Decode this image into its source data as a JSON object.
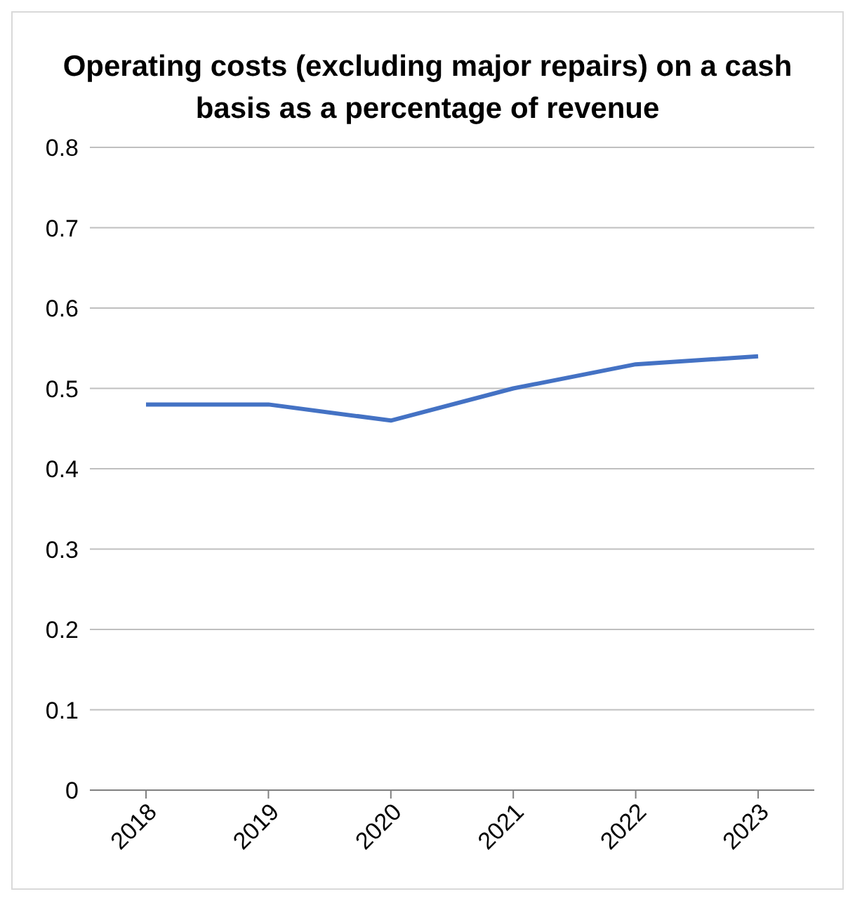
{
  "chart_data": {
    "type": "line",
    "title": "Operating costs (excluding major repairs) on a cash basis as a percentage of revenue",
    "categories": [
      "2018",
      "2019",
      "2020",
      "2021",
      "2022",
      "2023"
    ],
    "series": [
      {
        "color": "#4472c4",
        "values": [
          0.48,
          0.48,
          0.46,
          0.5,
          0.53,
          0.54
        ]
      }
    ],
    "ylim": [
      0,
      0.8
    ],
    "yticks": [
      0,
      0.1,
      0.2,
      0.3,
      0.4,
      0.5,
      0.6,
      0.7,
      0.8
    ],
    "grid": "y",
    "legend": false,
    "marker": "none",
    "line_style": "solid"
  }
}
